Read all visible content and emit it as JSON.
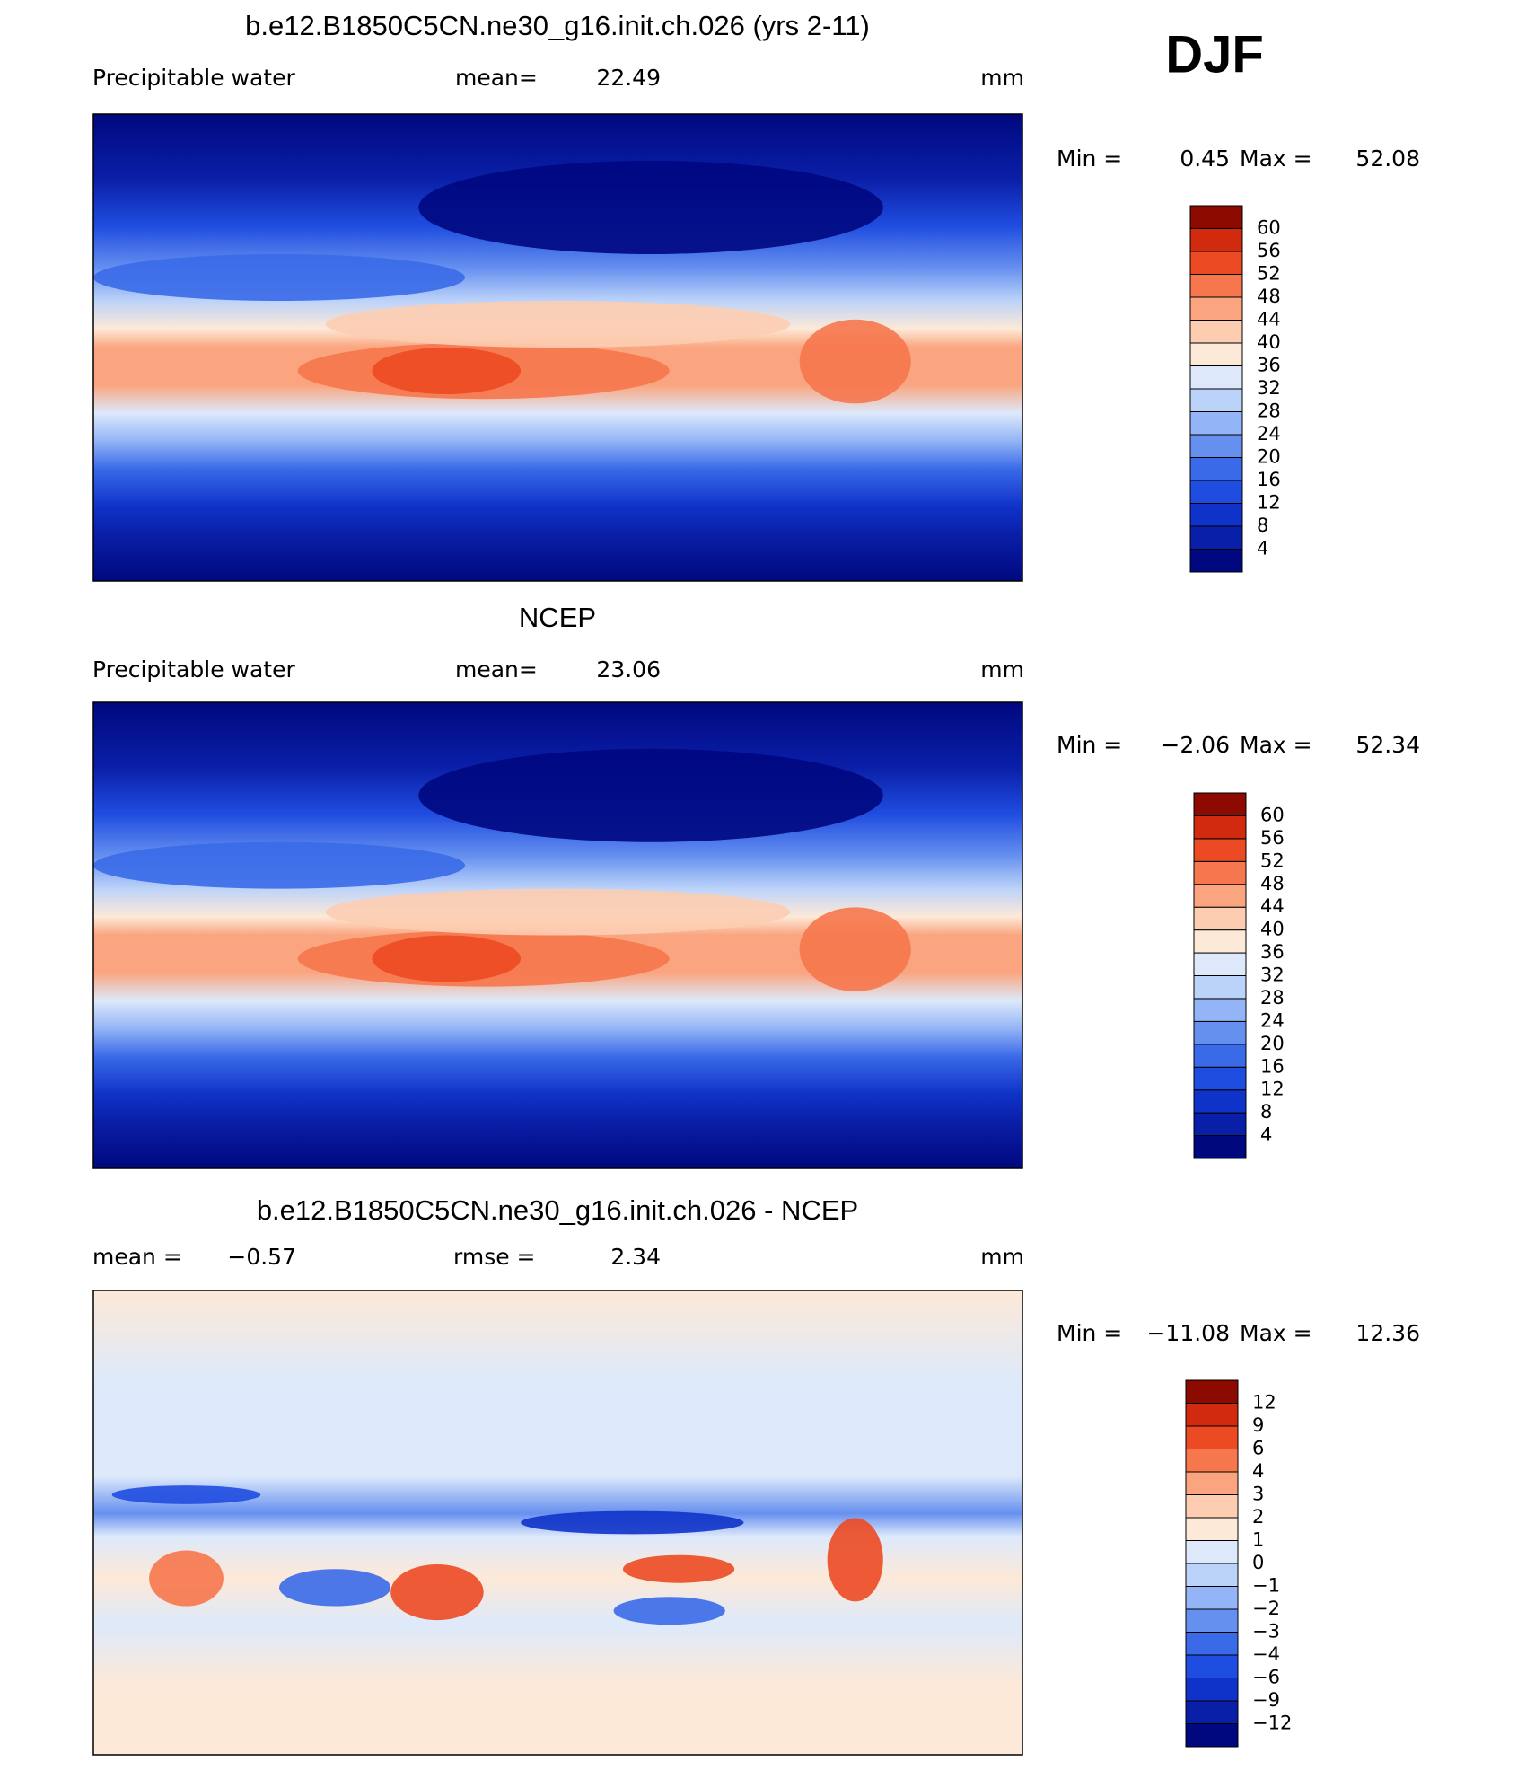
{
  "season": "DJF",
  "panels": [
    {
      "title": "b.e12.B1850C5CN.ne30_g16.init.ch.026 (yrs 2-11)",
      "variable": "Precipitable water",
      "stats": [
        {
          "label": "mean=",
          "value": 22.49
        }
      ],
      "units": "mm",
      "min_label": "Min =",
      "min": 0.45,
      "max_label": "Max =",
      "max": 52.08,
      "colorbar": {
        "levels": [
          4,
          8,
          12,
          16,
          20,
          24,
          28,
          32,
          36,
          40,
          44,
          48,
          52,
          56,
          60
        ],
        "colors": [
          "#00087f",
          "#0a1fa8",
          "#0f33c8",
          "#1f4de0",
          "#3a6ae8",
          "#6690ef",
          "#93b4f6",
          "#bcd3f9",
          "#dde9fb",
          "#fde9d8",
          "#fccdb1",
          "#faa57f",
          "#f6774d",
          "#ec4a22",
          "#d22a0f",
          "#8c0a00"
        ]
      }
    },
    {
      "title": "NCEP",
      "variable": "Precipitable water",
      "stats": [
        {
          "label": "mean=",
          "value": 23.06
        }
      ],
      "units": "mm",
      "min_label": "Min =",
      "min": {
        "value": -2.06,
        "label": "−2.06"
      },
      "max_label": "Max =",
      "max": 52.34,
      "colorbar": {
        "levels": [
          4,
          8,
          12,
          16,
          20,
          24,
          28,
          32,
          36,
          40,
          44,
          48,
          52,
          56,
          60
        ],
        "colors": [
          "#00087f",
          "#0a1fa8",
          "#0f33c8",
          "#1f4de0",
          "#3a6ae8",
          "#6690ef",
          "#93b4f6",
          "#bcd3f9",
          "#dde9fb",
          "#fde9d8",
          "#fccdb1",
          "#faa57f",
          "#f6774d",
          "#ec4a22",
          "#d22a0f",
          "#8c0a00"
        ]
      }
    },
    {
      "title": "b.e12.B1850C5CN.ne30_g16.init.ch.026 - NCEP",
      "stats": [
        {
          "label": "mean =",
          "value": {
            "value": -0.57,
            "label": "−0.57"
          }
        },
        {
          "label": "rmse =",
          "value": 2.34
        }
      ],
      "units": "mm",
      "min_label": "Min =",
      "min": {
        "value": -11.08,
        "label": "−11.08"
      },
      "max_label": "Max =",
      "max": 12.36,
      "colorbar": {
        "levels": [
          {
            "value": -12,
            "label": "−12"
          },
          {
            "value": -9,
            "label": "−9"
          },
          {
            "value": -6,
            "label": "−6"
          },
          {
            "value": -4,
            "label": "−4"
          },
          {
            "value": -3,
            "label": "−3"
          },
          {
            "value": -2,
            "label": "−2"
          },
          {
            "value": -1,
            "label": "−1"
          },
          0,
          1,
          2,
          3,
          4,
          6,
          9,
          12
        ],
        "colors": [
          "#00087f",
          "#0a1fa8",
          "#0f33c8",
          "#1f4de0",
          "#3a6ae8",
          "#6690ef",
          "#93b4f6",
          "#bcd3f9",
          "#dde9fb",
          "#fde9d8",
          "#fccdb1",
          "#faa57f",
          "#f6774d",
          "#ec4a22",
          "#d22a0f",
          "#8c0a00"
        ]
      }
    }
  ]
}
